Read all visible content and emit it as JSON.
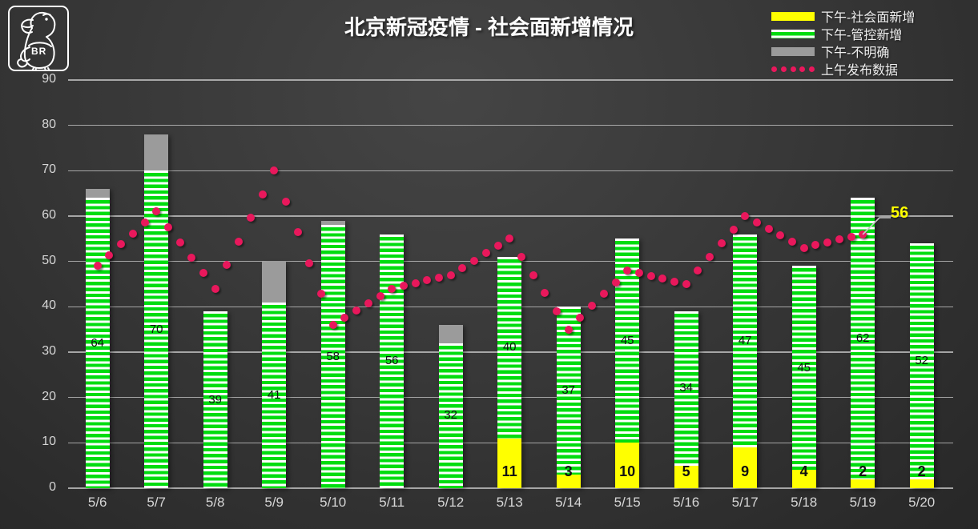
{
  "logo": {
    "text": "BR"
  },
  "chart_data": {
    "type": "bar",
    "stacked": true,
    "title": "北京新冠疫情 - 社会面新增情况",
    "categories": [
      "5/6",
      "5/7",
      "5/8",
      "5/9",
      "5/10",
      "5/11",
      "5/12",
      "5/13",
      "5/14",
      "5/15",
      "5/16",
      "5/17",
      "5/18",
      "5/19",
      "5/20"
    ],
    "series": [
      {
        "name": "下午-社会面新增",
        "type": "bar",
        "color": "#FFFF00",
        "pattern": "solid",
        "values": [
          0,
          0,
          0,
          0,
          0,
          0,
          0,
          11,
          3,
          10,
          5,
          9,
          4,
          2,
          2
        ],
        "labels_shown": true
      },
      {
        "name": "下午-管控新增",
        "type": "bar",
        "color": "#00DC0F",
        "pattern": "horizontal-white-stripes",
        "values": [
          64,
          70,
          39,
          41,
          58,
          56,
          32,
          40,
          37,
          45,
          34,
          47,
          45,
          62,
          52
        ],
        "labels_shown": true
      },
      {
        "name": "下午-不明确",
        "type": "bar",
        "color": "#9B9B9B",
        "pattern": "solid",
        "values": [
          2,
          8,
          0,
          9,
          1,
          0,
          4,
          0,
          0,
          0,
          0,
          0,
          0,
          0,
          0
        ],
        "labels_shown": false
      },
      {
        "name": "上午发布数据",
        "type": "dotted-line",
        "color": "#E9185C",
        "values": [
          49,
          61,
          44,
          70,
          36,
          44,
          47,
          55,
          35,
          48,
          45,
          60,
          53,
          56,
          null
        ]
      }
    ],
    "ylim": [
      0,
      90
    ],
    "yticks": [
      0,
      10,
      20,
      30,
      40,
      50,
      60,
      70,
      80,
      90
    ],
    "grid": "horizontal",
    "legend_position": "top-right",
    "annotation": {
      "text": "56",
      "series": "上午发布数据",
      "category": "5/19",
      "color": "#FFFF00"
    },
    "colors": {
      "background": "#383838",
      "gridline": "#C3C3C3",
      "axis_text": "#D6D6D6",
      "bar_label_text": "#111111",
      "title_text": "#FFFFFF",
      "legend_text": "#F0F0F0"
    }
  }
}
